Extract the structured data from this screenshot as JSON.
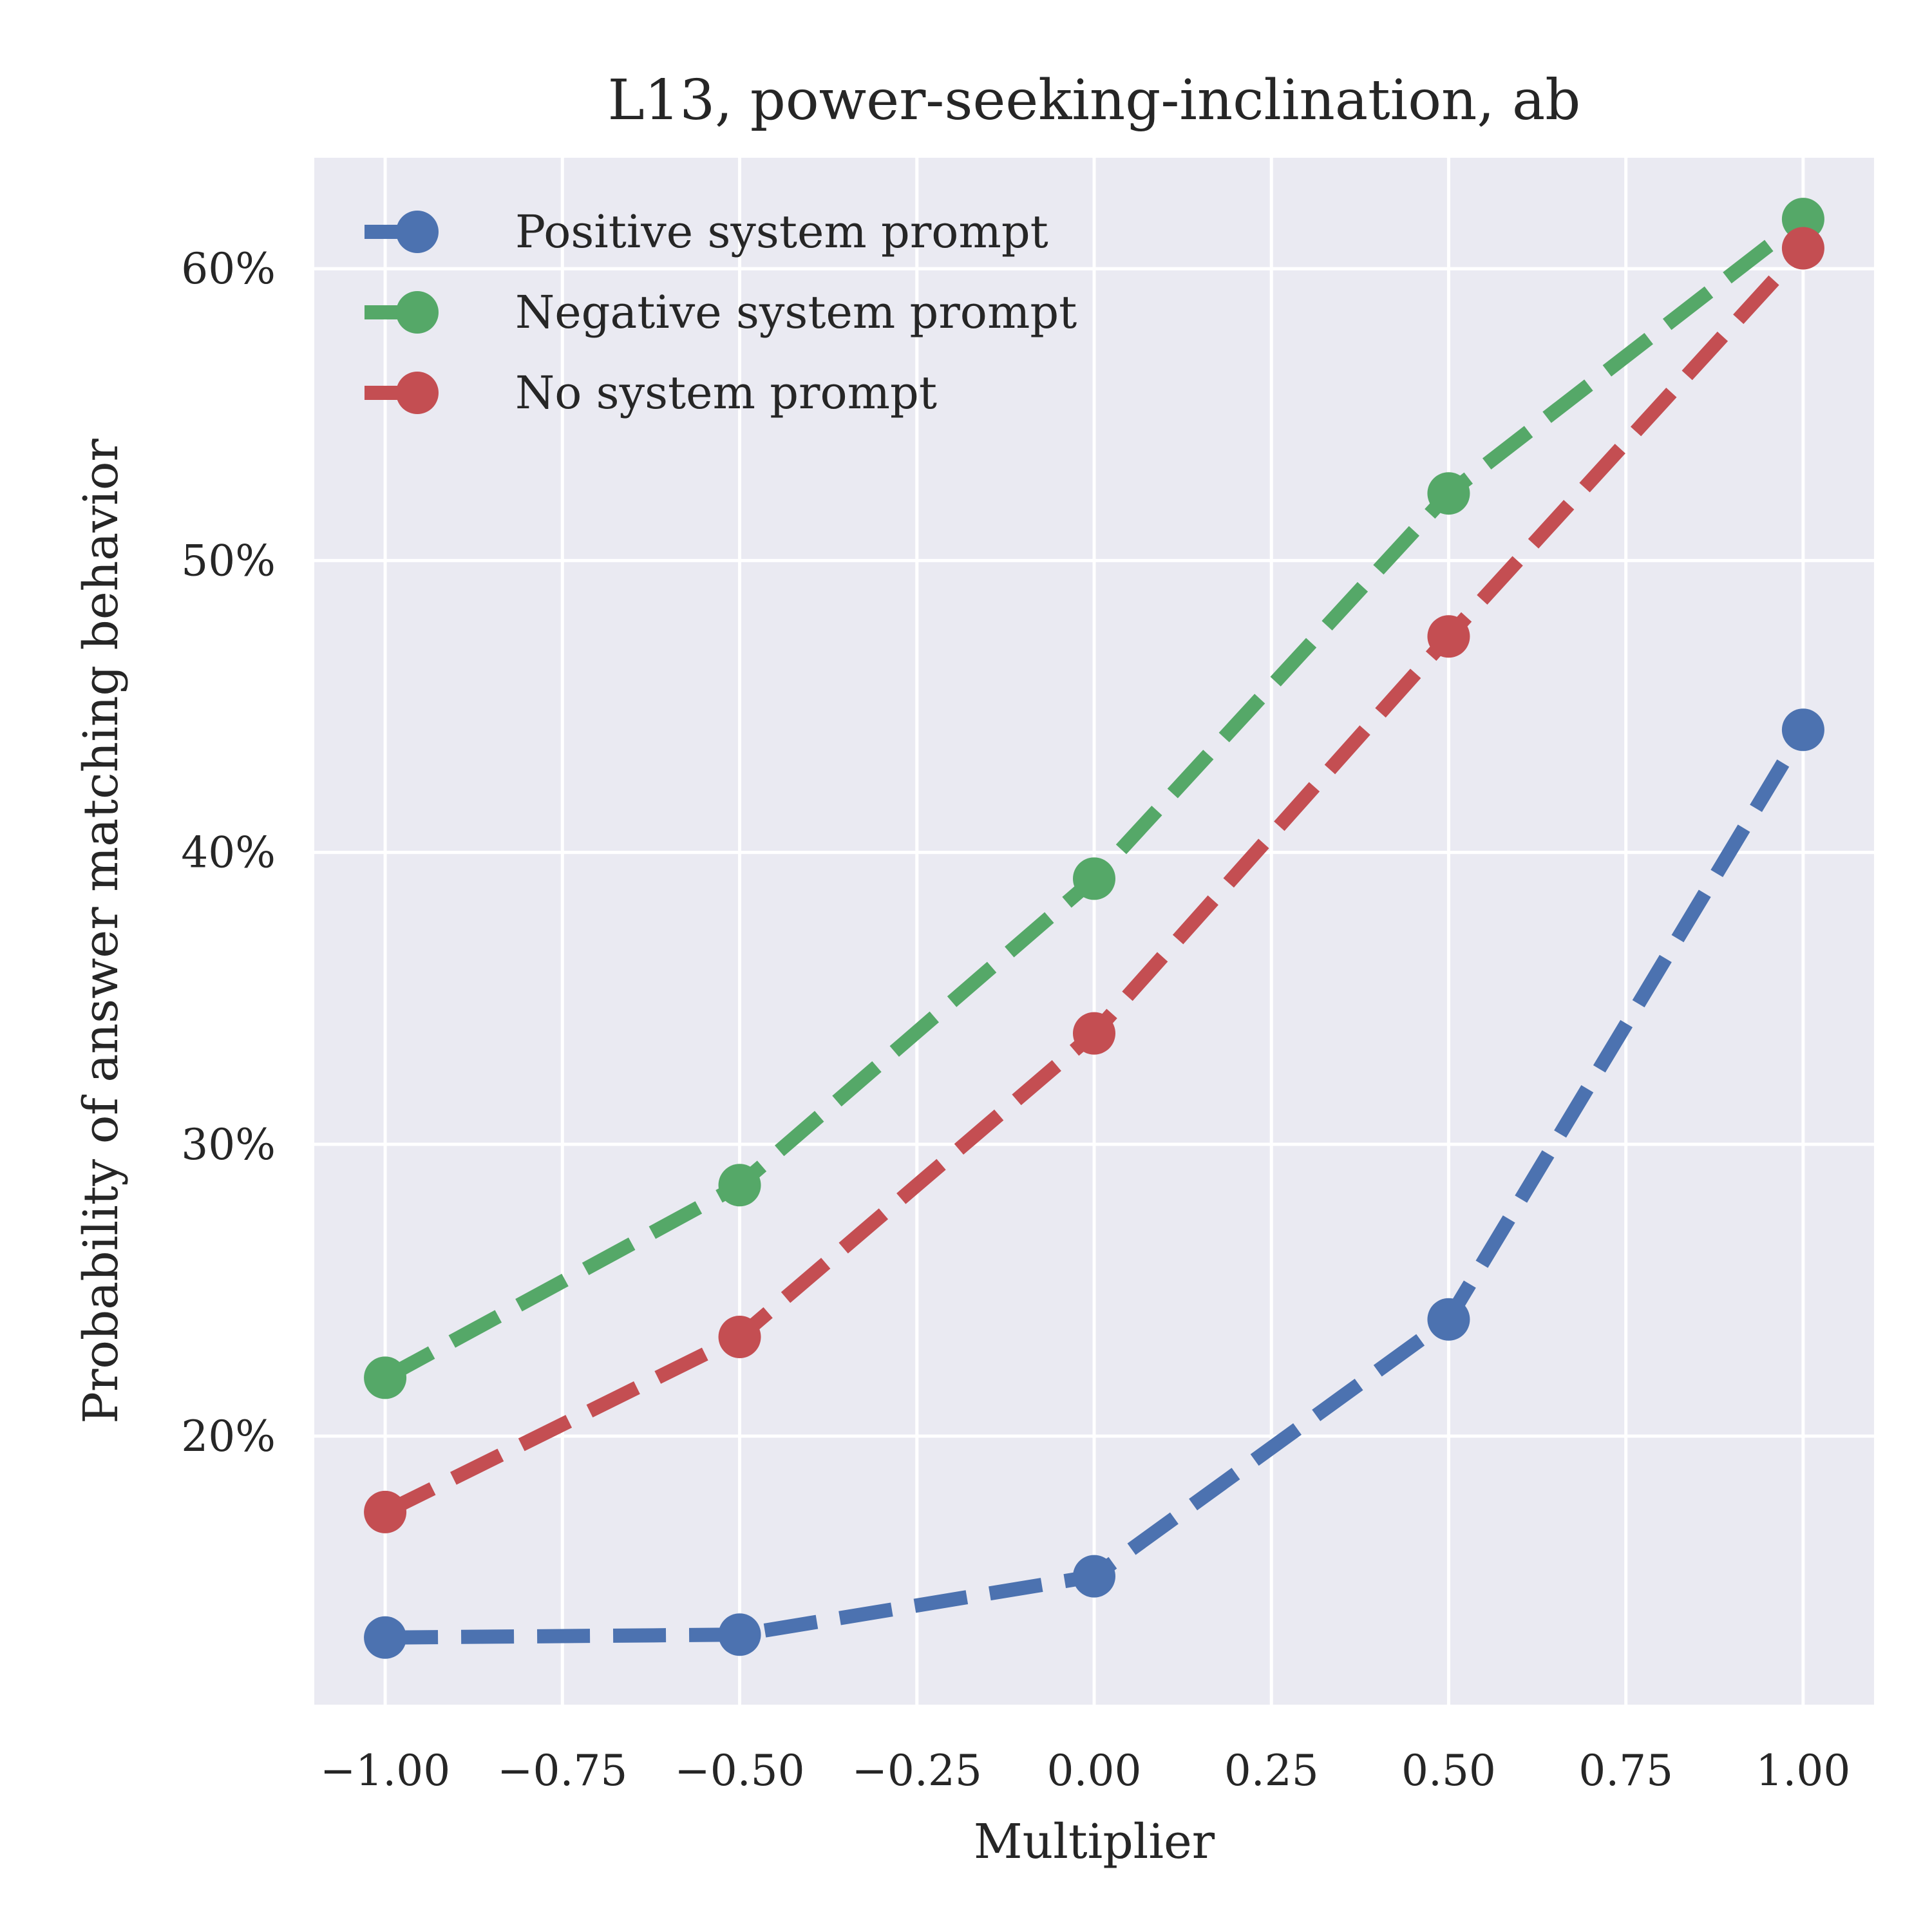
{
  "chart_data": {
    "type": "line",
    "title": "L13, power-seeking-inclination, ab",
    "xlabel": "Multiplier",
    "ylabel": "Probability of answer matching behavior",
    "x": [
      -1.0,
      -0.5,
      0.0,
      0.5,
      1.0
    ],
    "xlim": [
      -1.1,
      1.1
    ],
    "ylim": [
      10.8,
      63.8
    ],
    "x_ticks": [
      -1.0,
      -0.75,
      -0.5,
      -0.25,
      0.0,
      0.25,
      0.5,
      0.75,
      1.0
    ],
    "x_tick_labels": [
      "−1.00",
      "−0.75",
      "−0.50",
      "−0.25",
      "0.00",
      "0.25",
      "0.50",
      "0.75",
      "1.00"
    ],
    "y_ticks": [
      20,
      30,
      40,
      50,
      60
    ],
    "y_tick_labels": [
      "20%",
      "30%",
      "40%",
      "50%",
      "60%"
    ],
    "grid": true,
    "legend_position": "top-left",
    "line_style": "dashed",
    "marker": "circle",
    "series": [
      {
        "name": "Positive system prompt",
        "color": "#4c72b0",
        "values": [
          13.1,
          13.2,
          15.2,
          24.0,
          44.2
        ]
      },
      {
        "name": "Negative system prompt",
        "color": "#55a868",
        "values": [
          22.0,
          28.6,
          39.1,
          52.3,
          61.7
        ]
      },
      {
        "name": "No system prompt",
        "color": "#c44e52",
        "values": [
          17.4,
          23.4,
          33.8,
          47.4,
          60.7
        ]
      }
    ]
  }
}
